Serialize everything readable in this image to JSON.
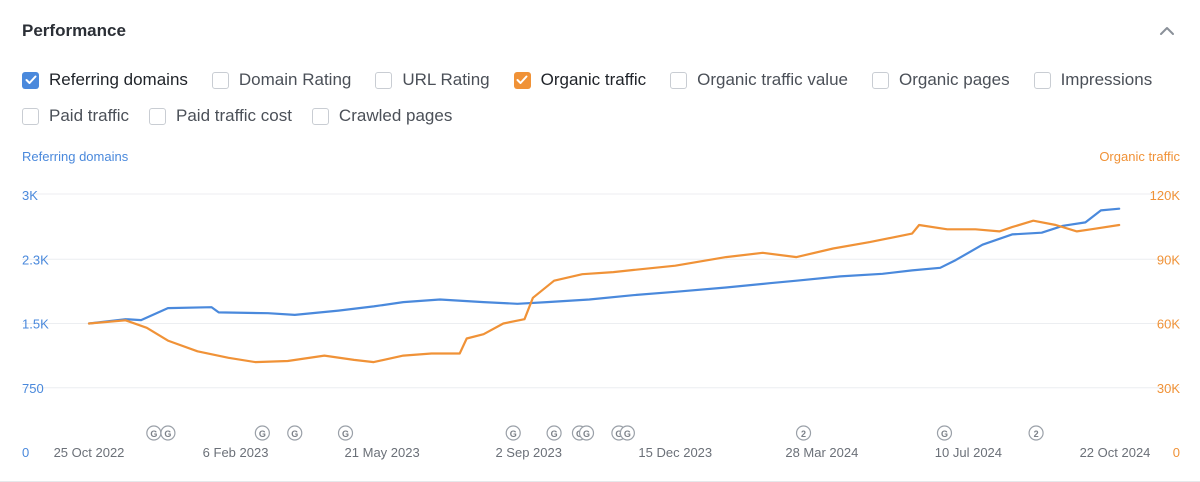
{
  "header": {
    "title": "Performance",
    "collapse_icon": "chevron-up-icon"
  },
  "metrics": [
    [
      {
        "label": "Referring domains",
        "checked": true,
        "color": "#4a89dc"
      },
      {
        "label": "Domain Rating",
        "checked": false
      },
      {
        "label": "URL Rating",
        "checked": false
      },
      {
        "label": "Organic traffic",
        "checked": true,
        "color": "#f09237"
      },
      {
        "label": "Organic traffic value",
        "checked": false
      },
      {
        "label": "Organic pages",
        "checked": false
      },
      {
        "label": "Impressions",
        "checked": false
      }
    ],
    [
      {
        "label": "Paid traffic",
        "checked": false
      },
      {
        "label": "Paid traffic cost",
        "checked": false
      },
      {
        "label": "Crawled pages",
        "checked": false
      }
    ]
  ],
  "chart_data": {
    "type": "line",
    "left_axis_title": "Referring domains",
    "right_axis_title": "Organic traffic",
    "left_ticks": [
      "0",
      "750",
      "1.5K",
      "2.3K",
      "3K"
    ],
    "right_ticks": [
      "0",
      "30K",
      "60K",
      "90K",
      "120K"
    ],
    "left_ylim": [
      0,
      3000
    ],
    "right_ylim": [
      0,
      120000
    ],
    "x_labels": [
      "25 Oct 2022",
      "6 Feb 2023",
      "21 May 2023",
      "2 Sep 2023",
      "15 Dec 2023",
      "28 Mar 2024",
      "10 Jul 2024",
      "22 Oct 2024"
    ],
    "grid": true,
    "series": [
      {
        "name": "Referring domains",
        "axis": "left",
        "color": "#4a89dc",
        "x": [
          "2022-10-25",
          "2022-11-20",
          "2022-12-01",
          "2022-12-20",
          "2023-01-20",
          "2023-01-25",
          "2023-03-01",
          "2023-03-20",
          "2023-04-20",
          "2023-05-15",
          "2023-06-05",
          "2023-07-01",
          "2023-08-01",
          "2023-08-25",
          "2023-09-15",
          "2023-10-15",
          "2023-11-15",
          "2023-12-15",
          "2024-01-20",
          "2024-02-20",
          "2024-03-10",
          "2024-04-10",
          "2024-05-10",
          "2024-05-31",
          "2024-06-20",
          "2024-07-01",
          "2024-07-20",
          "2024-08-10",
          "2024-08-31",
          "2024-09-15",
          "2024-10-01",
          "2024-10-12",
          "2024-10-25"
        ],
        "values": [
          1500,
          1550,
          1540,
          1680,
          1690,
          1630,
          1620,
          1600,
          1650,
          1700,
          1750,
          1780,
          1750,
          1730,
          1750,
          1780,
          1830,
          1870,
          1920,
          1970,
          2000,
          2050,
          2080,
          2120,
          2150,
          2240,
          2420,
          2540,
          2560,
          2640,
          2680,
          2820,
          2840
        ]
      },
      {
        "name": "Organic traffic",
        "axis": "right",
        "color": "#f09237",
        "x": [
          "2022-10-25",
          "2022-11-20",
          "2022-12-05",
          "2022-12-20",
          "2023-01-10",
          "2023-02-01",
          "2023-02-20",
          "2023-03-15",
          "2023-04-10",
          "2023-05-01",
          "2023-05-15",
          "2023-06-05",
          "2023-06-25",
          "2023-07-15",
          "2023-07-20",
          "2023-08-01",
          "2023-08-15",
          "2023-08-30",
          "2023-09-05",
          "2023-09-20",
          "2023-10-10",
          "2023-11-01",
          "2023-11-15",
          "2023-12-15",
          "2024-01-20",
          "2024-02-15",
          "2024-03-10",
          "2024-04-05",
          "2024-05-01",
          "2024-05-31",
          "2024-06-05",
          "2024-06-25",
          "2024-07-15",
          "2024-08-01",
          "2024-08-10",
          "2024-08-25",
          "2024-09-10",
          "2024-09-25",
          "2024-10-05",
          "2024-10-25"
        ],
        "values": [
          60000,
          61500,
          58000,
          52000,
          47000,
          44000,
          42000,
          42500,
          45000,
          43000,
          42000,
          45000,
          46000,
          46000,
          53000,
          55000,
          60000,
          62000,
          72000,
          80000,
          83000,
          84000,
          85000,
          87000,
          91000,
          93000,
          91000,
          95000,
          98000,
          102000,
          106000,
          104000,
          104000,
          103000,
          105000,
          108000,
          106000,
          103000,
          104000,
          106000
        ]
      }
    ],
    "annotations": [
      {
        "date": "2022-12-10",
        "label": "G"
      },
      {
        "date": "2022-12-20",
        "label": "G"
      },
      {
        "date": "2023-02-25",
        "label": "G"
      },
      {
        "date": "2023-03-20",
        "label": "G"
      },
      {
        "date": "2023-04-25",
        "label": "G"
      },
      {
        "date": "2023-08-22",
        "label": "G"
      },
      {
        "date": "2023-09-20",
        "label": "G"
      },
      {
        "date": "2023-10-08",
        "label": "G"
      },
      {
        "date": "2023-10-13",
        "label": "G"
      },
      {
        "date": "2023-11-05",
        "label": "G"
      },
      {
        "date": "2023-11-11",
        "label": "G"
      },
      {
        "date": "2024-03-15",
        "label": "2"
      },
      {
        "date": "2024-06-23",
        "label": "G"
      },
      {
        "date": "2024-08-27",
        "label": "2"
      }
    ]
  }
}
